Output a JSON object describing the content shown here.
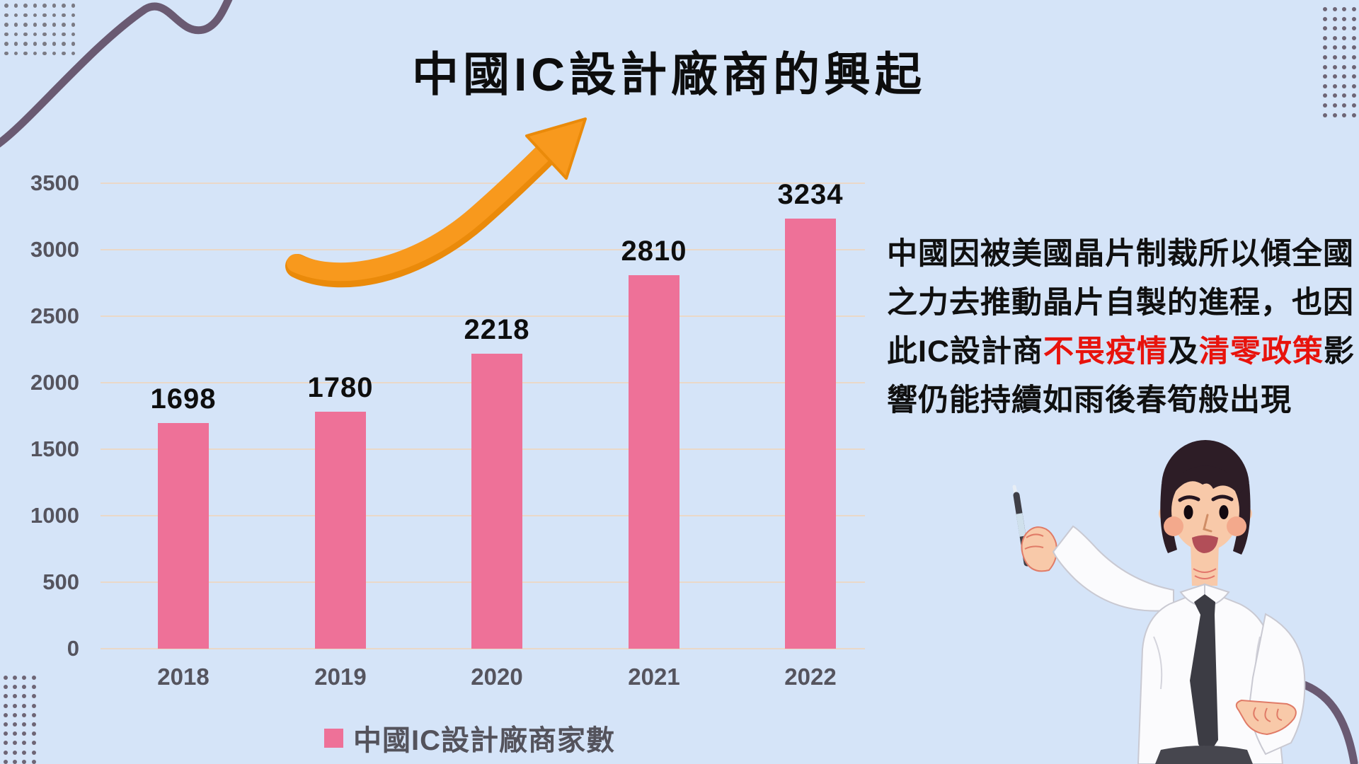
{
  "title": "中國IC設計廠商的興起",
  "chart_data": {
    "type": "bar",
    "title": "中國IC設計廠商的興起",
    "categories": [
      "2018",
      "2019",
      "2020",
      "2021",
      "2022"
    ],
    "values": [
      1698,
      1780,
      2218,
      2810,
      3234
    ],
    "series_name": "中國IC設計廠商家數",
    "xlabel": "",
    "ylabel": "",
    "ylim": [
      0,
      3500
    ],
    "yticks": [
      0,
      500,
      1000,
      1500,
      2000,
      2500,
      3000,
      3500
    ],
    "grid": "horizontal",
    "legend_position": "bottom",
    "bar_color": "#ee7198"
  },
  "legend": {
    "label": "中國IC設計廠商家數"
  },
  "paragraph": {
    "lines": [
      [
        {
          "t": "中國因被美國晶片制裁所以傾全國"
        }
      ],
      [
        {
          "t": "之力去推動晶片自製的進程，也因"
        }
      ],
      [
        {
          "t": "此IC設計商"
        },
        {
          "t": "不畏疫情",
          "red": true
        },
        {
          "t": "及"
        },
        {
          "t": "清零政策",
          "red": true
        },
        {
          "t": "影"
        }
      ],
      [
        {
          "t": "響仍能持續如雨後春筍般出現"
        }
      ]
    ]
  },
  "colors": {
    "background": "#d5e4f8",
    "bar_pink": "#ee7198",
    "gridline": "#ead8c8",
    "axis_text": "#55545e",
    "text_black": "#0d0d0d",
    "text_red": "#e8130c",
    "arrow_orange": "#f8991d",
    "wave_purple": "#6a5a72",
    "dots": "#6e6575"
  }
}
